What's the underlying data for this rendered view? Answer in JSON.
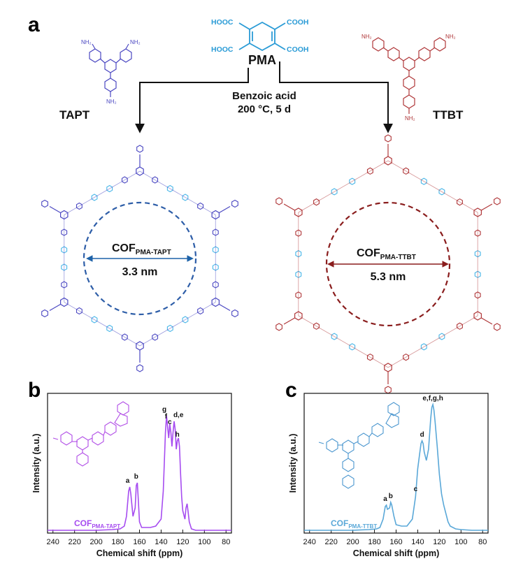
{
  "panel_a": {
    "label": "a",
    "pma": {
      "name": "PMA",
      "cooh_tl": "HOOC",
      "cooh_tr": "COOH",
      "cooh_bl": "HOOC",
      "cooh_br": "COOH",
      "color": "#2a9bd6"
    },
    "tapt": {
      "name": "TAPT",
      "nh2": "NH₂",
      "color": "#4b48c2"
    },
    "ttbt": {
      "name": "TTBT",
      "nh2": "NH₂",
      "color": "#b0383a"
    },
    "conditions": {
      "line1": "Benzoic acid",
      "line2": "200 °C, 5 d"
    },
    "cof_left": {
      "name": "COF",
      "sub": "PMA-TAPT",
      "size": "3.3 nm",
      "ring_color": "#2e5ea8"
    },
    "cof_right": {
      "name": "COF",
      "sub": "PMA-TTBT",
      "size": "5.3 nm",
      "ring_color": "#8a1d1d"
    }
  },
  "chart_data": [
    {
      "panel": "b",
      "type": "line",
      "xlabel": "Chemical shift (ppm)",
      "ylabel": "Intensity (a.u.)",
      "xlim": [
        245,
        75
      ],
      "xticks": [
        240,
        220,
        200,
        180,
        160,
        140,
        120,
        100,
        80
      ],
      "color": "#a64cf0",
      "series": [
        {
          "name": "COF",
          "sub": "PMA-TAPT",
          "x": [
            245,
            230,
            215,
            200,
            185,
            178,
            174,
            172,
            170,
            169,
            168,
            166,
            164,
            163,
            162,
            161,
            160,
            158,
            150,
            145,
            140,
            138,
            136,
            135,
            134,
            133,
            132,
            131,
            130,
            129,
            128,
            127,
            126,
            125,
            124,
            123,
            122,
            121,
            120,
            118,
            117,
            116,
            115,
            114,
            112,
            108,
            100,
            90,
            80,
            75
          ],
          "y": [
            0.02,
            0.02,
            0.02,
            0.02,
            0.025,
            0.03,
            0.05,
            0.12,
            0.3,
            0.33,
            0.28,
            0.12,
            0.18,
            0.34,
            0.36,
            0.22,
            0.08,
            0.04,
            0.04,
            0.05,
            0.1,
            0.3,
            0.72,
            0.84,
            0.76,
            0.68,
            0.78,
            0.72,
            0.62,
            0.72,
            0.8,
            0.74,
            0.6,
            0.66,
            0.68,
            0.62,
            0.42,
            0.26,
            0.16,
            0.1,
            0.18,
            0.21,
            0.15,
            0.08,
            0.03,
            0.02,
            0.02,
            0.02,
            0.02,
            0.02
          ]
        }
      ],
      "peak_labels": [
        {
          "text": "a",
          "x": 171,
          "y": 0.36
        },
        {
          "text": "b",
          "x": 163,
          "y": 0.39
        },
        {
          "text": "g",
          "x": 137,
          "y": 0.87
        },
        {
          "text": "f",
          "x": 135.5,
          "y": 0.82
        },
        {
          "text": "c",
          "x": 132,
          "y": 0.78
        },
        {
          "text": "d,e",
          "x": 124,
          "y": 0.83
        },
        {
          "text": "h",
          "x": 125,
          "y": 0.69
        }
      ]
    },
    {
      "panel": "c",
      "type": "line",
      "xlabel": "Chemical shift (ppm)",
      "ylabel": "Intensity (a.u.)",
      "xlim": [
        245,
        75
      ],
      "xticks": [
        240,
        220,
        200,
        180,
        160,
        140,
        120,
        100,
        80
      ],
      "color": "#5aa8d8",
      "series": [
        {
          "name": "COF",
          "sub": "PMA-TTBT",
          "x": [
            245,
            230,
            215,
            200,
            185,
            178,
            175,
            172,
            170,
            169,
            168,
            166,
            165,
            164,
            162,
            160,
            155,
            150,
            145,
            142,
            140,
            138,
            137,
            136,
            135,
            134,
            132,
            130,
            128,
            127,
            126,
            125,
            124,
            122,
            120,
            118,
            116,
            114,
            112,
            110,
            105,
            100,
            90,
            80,
            75
          ],
          "y": [
            0.02,
            0.02,
            0.02,
            0.02,
            0.025,
            0.03,
            0.04,
            0.1,
            0.19,
            0.2,
            0.17,
            0.18,
            0.22,
            0.2,
            0.12,
            0.06,
            0.05,
            0.05,
            0.1,
            0.26,
            0.46,
            0.58,
            0.64,
            0.66,
            0.64,
            0.58,
            0.52,
            0.6,
            0.82,
            0.9,
            0.92,
            0.88,
            0.8,
            0.62,
            0.42,
            0.28,
            0.2,
            0.14,
            0.08,
            0.05,
            0.03,
            0.025,
            0.02,
            0.02,
            0.02
          ]
        }
      ],
      "peak_labels": [
        {
          "text": "a",
          "x": 170,
          "y": 0.23
        },
        {
          "text": "b",
          "x": 165,
          "y": 0.25
        },
        {
          "text": "c",
          "x": 142,
          "y": 0.3
        },
        {
          "text": "d",
          "x": 136,
          "y": 0.69
        },
        {
          "text": "e,f,g,h",
          "x": 126,
          "y": 0.95
        }
      ]
    }
  ],
  "panel_b": {
    "label": "b"
  },
  "panel_c": {
    "label": "c"
  }
}
